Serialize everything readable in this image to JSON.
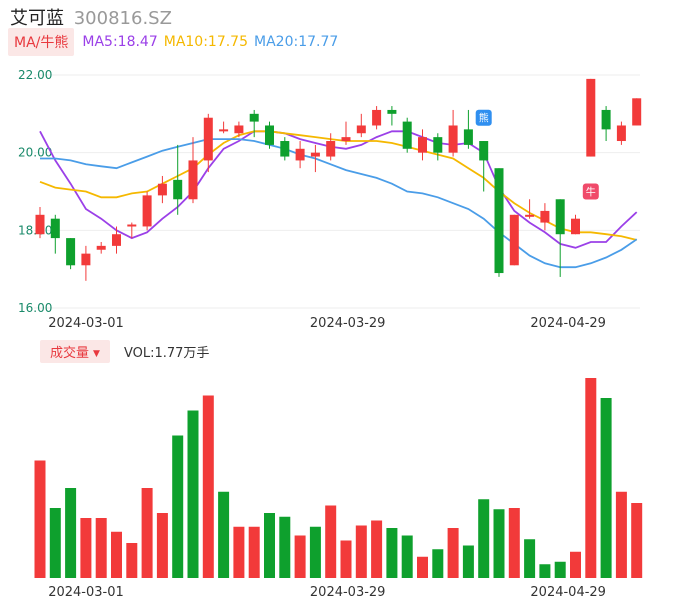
{
  "header": {
    "name": "艾可蓝",
    "code": "300816.SZ"
  },
  "ma_bar": {
    "button": "MA/牛熊",
    "items": [
      {
        "text": "MA5:18.47",
        "color": "#9b40e8"
      },
      {
        "text": "MA10:17.75",
        "color": "#f5b800"
      },
      {
        "text": "MA20:17.77",
        "color": "#4a9de8"
      }
    ]
  },
  "volume_bar": {
    "button": "成交量",
    "value": "VOL:1.77万手"
  },
  "colors": {
    "up": "#f23a3a",
    "down": "#0ea02d",
    "grid": "#eeeeee"
  },
  "markers": {
    "bear": "熊",
    "bull": "牛"
  },
  "chart_data": [
    {
      "type": "candlestick",
      "ylim": [
        16,
        22
      ],
      "y_ticks": [
        "22.00",
        "20.00",
        "18.00",
        "16.00"
      ],
      "x_labels": [
        "2024-03-01",
        "2024-03-29",
        "2024-04-29"
      ],
      "x_label_index": [
        0,
        19,
        34
      ],
      "candles": [
        {
          "o": 17.9,
          "c": 18.4,
          "h": 18.6,
          "l": 17.8
        },
        {
          "o": 18.3,
          "c": 17.8,
          "h": 18.4,
          "l": 17.4
        },
        {
          "o": 17.8,
          "c": 17.1,
          "h": 17.8,
          "l": 17.0
        },
        {
          "o": 17.1,
          "c": 17.4,
          "h": 17.6,
          "l": 16.7
        },
        {
          "o": 17.5,
          "c": 17.6,
          "h": 17.7,
          "l": 17.4
        },
        {
          "o": 17.6,
          "c": 17.9,
          "h": 18.1,
          "l": 17.4
        },
        {
          "o": 18.1,
          "c": 18.15,
          "h": 18.2,
          "l": 17.8
        },
        {
          "o": 18.1,
          "c": 18.9,
          "h": 19.0,
          "l": 18.0
        },
        {
          "o": 18.9,
          "c": 19.2,
          "h": 19.4,
          "l": 18.7
        },
        {
          "o": 19.3,
          "c": 18.8,
          "h": 20.2,
          "l": 18.4
        },
        {
          "o": 18.8,
          "c": 19.8,
          "h": 20.4,
          "l": 18.7
        },
        {
          "o": 19.8,
          "c": 20.9,
          "h": 21.0,
          "l": 19.5
        },
        {
          "o": 20.6,
          "c": 20.6,
          "h": 20.8,
          "l": 20.5
        },
        {
          "o": 20.5,
          "c": 20.7,
          "h": 20.8,
          "l": 20.4
        },
        {
          "o": 21.0,
          "c": 20.8,
          "h": 21.1,
          "l": 20.4
        },
        {
          "o": 20.7,
          "c": 20.2,
          "h": 20.8,
          "l": 20.1
        },
        {
          "o": 20.3,
          "c": 19.9,
          "h": 20.4,
          "l": 19.8
        },
        {
          "o": 19.8,
          "c": 20.1,
          "h": 20.3,
          "l": 19.6
        },
        {
          "o": 19.9,
          "c": 20.0,
          "h": 20.2,
          "l": 19.5
        },
        {
          "o": 19.9,
          "c": 20.3,
          "h": 20.5,
          "l": 19.8
        },
        {
          "o": 20.3,
          "c": 20.4,
          "h": 20.8,
          "l": 20.2
        },
        {
          "o": 20.5,
          "c": 20.7,
          "h": 21.0,
          "l": 20.4
        },
        {
          "o": 20.7,
          "c": 21.1,
          "h": 21.2,
          "l": 20.6
        },
        {
          "o": 21.1,
          "c": 21.0,
          "h": 21.2,
          "l": 20.7
        },
        {
          "o": 20.8,
          "c": 20.1,
          "h": 20.9,
          "l": 20.0
        },
        {
          "o": 20.0,
          "c": 20.4,
          "h": 20.6,
          "l": 19.8
        },
        {
          "o": 20.4,
          "c": 20.0,
          "h": 20.5,
          "l": 19.8
        },
        {
          "o": 20.0,
          "c": 20.7,
          "h": 21.1,
          "l": 19.9
        },
        {
          "o": 20.6,
          "c": 20.2,
          "h": 21.1,
          "l": 20.1
        },
        {
          "o": 20.3,
          "c": 19.8,
          "h": 20.3,
          "l": 19.0
        },
        {
          "o": 19.6,
          "c": 16.9,
          "h": 19.6,
          "l": 16.8
        },
        {
          "o": 17.1,
          "c": 18.4,
          "h": 18.4,
          "l": 17.1
        },
        {
          "o": 18.4,
          "c": 18.4,
          "h": 18.8,
          "l": 18.3
        },
        {
          "o": 18.2,
          "c": 18.5,
          "h": 18.7,
          "l": 18.0
        },
        {
          "o": 18.8,
          "c": 17.9,
          "h": 18.8,
          "l": 16.8
        },
        {
          "o": 17.9,
          "c": 18.3,
          "h": 18.4,
          "l": 17.9
        },
        {
          "o": 19.9,
          "c": 21.9,
          "h": 21.9,
          "l": 19.9
        },
        {
          "o": 21.1,
          "c": 20.6,
          "h": 21.2,
          "l": 20.3
        },
        {
          "o": 20.3,
          "c": 20.7,
          "h": 20.8,
          "l": 20.2
        },
        {
          "o": 20.7,
          "c": 21.4,
          "h": 21.4,
          "l": 20.7
        }
      ],
      "series": [
        {
          "name": "MA5",
          "color": "#9b40e8",
          "values": [
            20.55,
            19.8,
            19.2,
            18.55,
            18.3,
            18.0,
            17.8,
            17.95,
            18.3,
            18.6,
            19.0,
            19.6,
            20.1,
            20.3,
            20.55,
            20.55,
            20.5,
            20.35,
            20.25,
            20.15,
            20.1,
            20.2,
            20.4,
            20.55,
            20.55,
            20.4,
            20.25,
            20.2,
            20.25,
            20.0,
            19.1,
            18.5,
            18.2,
            17.95,
            17.65,
            17.55,
            17.7,
            17.7,
            18.1,
            18.47
          ]
        },
        {
          "name": "MA10",
          "color": "#f5b800",
          "values": [
            19.25,
            19.1,
            19.05,
            19.0,
            18.85,
            18.85,
            18.95,
            19.0,
            19.2,
            19.4,
            19.6,
            19.95,
            20.25,
            20.45,
            20.55,
            20.55,
            20.5,
            20.45,
            20.4,
            20.35,
            20.3,
            20.3,
            20.3,
            20.25,
            20.15,
            20.05,
            19.95,
            19.85,
            19.6,
            19.35,
            19.0,
            18.7,
            18.45,
            18.25,
            18.05,
            17.95,
            17.95,
            17.9,
            17.85,
            17.75
          ]
        },
        {
          "name": "MA20",
          "color": "#4a9de8",
          "values": [
            19.85,
            19.85,
            19.8,
            19.7,
            19.65,
            19.6,
            19.75,
            19.9,
            20.05,
            20.15,
            20.25,
            20.35,
            20.35,
            20.35,
            20.3,
            20.2,
            20.1,
            19.95,
            19.85,
            19.7,
            19.55,
            19.45,
            19.35,
            19.2,
            19.0,
            18.95,
            18.85,
            18.7,
            18.55,
            18.3,
            17.95,
            17.65,
            17.35,
            17.15,
            17.05,
            17.05,
            17.15,
            17.3,
            17.5,
            17.77
          ]
        }
      ]
    },
    {
      "type": "bar",
      "title": "成交量",
      "values": [
        4.7,
        2.8,
        3.6,
        2.4,
        2.4,
        1.85,
        1.4,
        3.6,
        2.6,
        5.7,
        6.7,
        7.3,
        3.45,
        2.05,
        2.05,
        2.6,
        2.45,
        1.7,
        2.05,
        2.9,
        1.5,
        2.1,
        2.3,
        2.0,
        1.7,
        0.85,
        1.15,
        2.0,
        1.3,
        3.15,
        2.75,
        2.8,
        1.55,
        0.55,
        0.65,
        1.05,
        8.0,
        7.2,
        3.45,
        3.0
      ],
      "colors": [
        "up",
        "down",
        "down",
        "up",
        "up",
        "up",
        "up",
        "up",
        "up",
        "down",
        "down",
        "up",
        "down",
        "up",
        "up",
        "down",
        "down",
        "up",
        "down",
        "up",
        "up",
        "up",
        "up",
        "down",
        "down",
        "up",
        "down",
        "up",
        "down",
        "down",
        "down",
        "up",
        "down",
        "down",
        "down",
        "up",
        "up",
        "down",
        "up",
        "up"
      ]
    }
  ]
}
